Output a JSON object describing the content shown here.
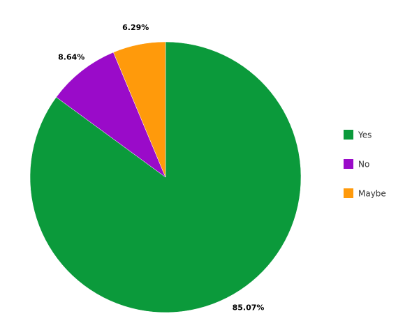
{
  "chart_data": {
    "type": "pie",
    "categories": [
      "Yes",
      "No",
      "Maybe"
    ],
    "values": [
      85.07,
      8.64,
      6.29
    ],
    "value_labels": [
      "85.07%",
      "8.64%",
      "6.29%"
    ],
    "colors": [
      "#0b9a3b",
      "#9a0bc9",
      "#ff9a0b"
    ],
    "legend": "right"
  }
}
